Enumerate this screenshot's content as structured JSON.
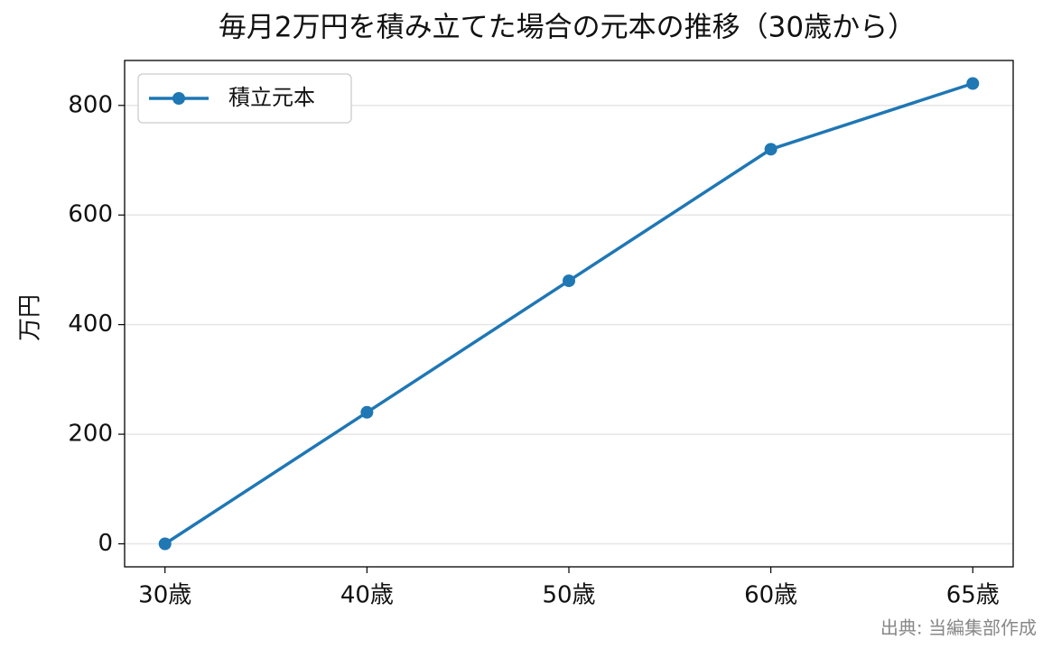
{
  "chart_data": {
    "type": "line",
    "title": "毎月2万円を積み立てた場合の元本の推移（30歳から）",
    "y_label": "万円",
    "source": "出典: 当編集部作成",
    "categories": [
      "30歳",
      "40歳",
      "50歳",
      "60歳",
      "65歳"
    ],
    "series": [
      {
        "name": "積立元本",
        "color": "#1f77b4",
        "values": [
          0,
          240,
          480,
          720,
          840
        ]
      }
    ],
    "ylim": [
      -42,
      882
    ],
    "yticks": [
      0,
      200,
      400,
      600,
      800
    ],
    "grid": true,
    "legend": "upper-left"
  }
}
